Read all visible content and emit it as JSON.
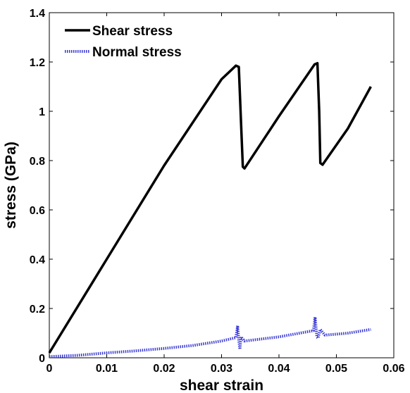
{
  "chart_data": {
    "type": "line",
    "xlabel": "shear strain",
    "ylabel": "stress (GPa)",
    "xlim": [
      0,
      0.06
    ],
    "ylim": [
      0,
      1.4
    ],
    "xticks": [
      "0",
      "0.01",
      "0.02",
      "0.03",
      "0.04",
      "0.05",
      "0.06"
    ],
    "yticks": [
      "0",
      "0.2",
      "0.4",
      "0.6",
      "0.8",
      "1",
      "1.2",
      "1.4"
    ],
    "legend_position": "top-left",
    "grid": false,
    "series": [
      {
        "name": "Shear stress",
        "color": "#000000",
        "style": "solid",
        "points": [
          [
            0.0,
            0.02
          ],
          [
            0.01,
            0.4
          ],
          [
            0.02,
            0.78
          ],
          [
            0.03,
            1.13
          ],
          [
            0.0325,
            1.185
          ],
          [
            0.033,
            1.18
          ],
          [
            0.0334,
            0.95
          ],
          [
            0.0337,
            0.775
          ],
          [
            0.034,
            0.768
          ],
          [
            0.04,
            0.98
          ],
          [
            0.0462,
            1.19
          ],
          [
            0.0467,
            1.195
          ],
          [
            0.047,
            1.0
          ],
          [
            0.0472,
            0.79
          ],
          [
            0.0476,
            0.783
          ],
          [
            0.052,
            0.93
          ],
          [
            0.056,
            1.1
          ]
        ]
      },
      {
        "name": "Normal stress",
        "color": "#3a3ad6",
        "style": "dotted",
        "points": [
          [
            0.0,
            0.005
          ],
          [
            0.005,
            0.01
          ],
          [
            0.01,
            0.02
          ],
          [
            0.015,
            0.028
          ],
          [
            0.02,
            0.038
          ],
          [
            0.025,
            0.05
          ],
          [
            0.03,
            0.068
          ],
          [
            0.0325,
            0.082
          ],
          [
            0.0328,
            0.13
          ],
          [
            0.033,
            0.07
          ],
          [
            0.0332,
            0.035
          ],
          [
            0.0334,
            0.085
          ],
          [
            0.034,
            0.068
          ],
          [
            0.04,
            0.085
          ],
          [
            0.046,
            0.11
          ],
          [
            0.0463,
            0.165
          ],
          [
            0.0466,
            0.085
          ],
          [
            0.0468,
            0.08
          ],
          [
            0.0472,
            0.115
          ],
          [
            0.048,
            0.092
          ],
          [
            0.052,
            0.1
          ],
          [
            0.056,
            0.115
          ]
        ]
      }
    ]
  }
}
